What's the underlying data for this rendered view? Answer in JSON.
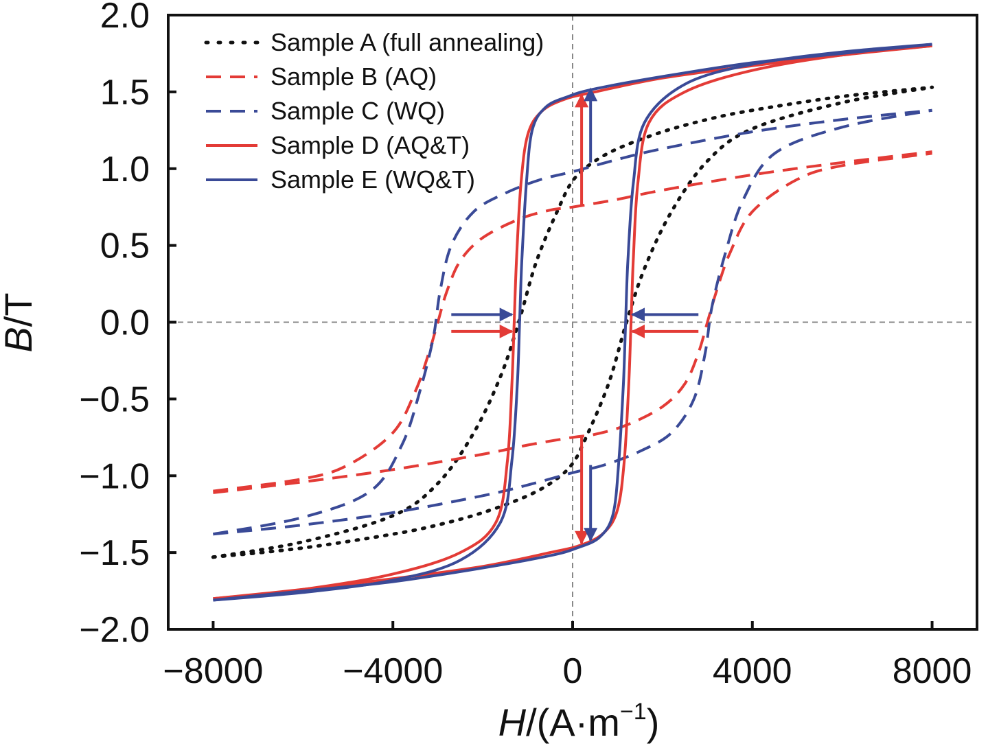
{
  "chart_data": {
    "type": "line",
    "title": "",
    "xlabel_italic": "H",
    "xlabel_unit": "/(A·m",
    "xlabel_sup": "−1",
    "xlabel_close": ")",
    "ylabel_italic": "B",
    "ylabel_unit": "/T",
    "xlim": [
      -9000,
      9000
    ],
    "ylim": [
      -2.0,
      2.0
    ],
    "x_ticks": [
      -8000,
      -4000,
      0,
      4000,
      8000
    ],
    "x_tick_labels": [
      "−8000",
      "−4000",
      "0",
      "4000",
      "8000"
    ],
    "y_ticks": [
      2.0,
      1.5,
      1.0,
      0.5,
      0.0,
      -0.5,
      -1.0,
      -1.5,
      -2.0
    ],
    "y_tick_labels": [
      "2.0",
      "1.5",
      "1.0",
      "0.5",
      "0.0",
      "−0.5",
      "−1.0",
      "−1.5",
      "−2.0"
    ],
    "grid": false,
    "zero_lines": true,
    "legend_position": "top-left",
    "series": [
      {
        "name": "Sample A (full annealing)",
        "style": "dotted",
        "color": "#111111",
        "upper": [
          [
            -8000,
            -1.53
          ],
          [
            -6000,
            -1.43
          ],
          [
            -4000,
            -1.26
          ],
          [
            -3000,
            -1.05
          ],
          [
            -2200,
            -0.72
          ],
          [
            -1600,
            -0.35
          ],
          [
            -1200,
            0.0
          ],
          [
            -800,
            0.4
          ],
          [
            -300,
            0.75
          ],
          [
            0,
            0.92
          ],
          [
            400,
            1.03
          ],
          [
            1000,
            1.13
          ],
          [
            2000,
            1.24
          ],
          [
            3000,
            1.32
          ],
          [
            4000,
            1.38
          ],
          [
            6000,
            1.47
          ],
          [
            8000,
            1.53
          ]
        ],
        "lower": [
          [
            -8000,
            -1.53
          ],
          [
            -6000,
            -1.47
          ],
          [
            -4000,
            -1.38
          ],
          [
            -3000,
            -1.32
          ],
          [
            -2000,
            -1.24
          ],
          [
            -1000,
            -1.13
          ],
          [
            -400,
            -1.03
          ],
          [
            0,
            -0.92
          ],
          [
            300,
            -0.75
          ],
          [
            800,
            -0.4
          ],
          [
            1200,
            0.0
          ],
          [
            1600,
            0.35
          ],
          [
            2200,
            0.72
          ],
          [
            3000,
            1.05
          ],
          [
            4000,
            1.26
          ],
          [
            6000,
            1.43
          ],
          [
            8000,
            1.53
          ]
        ]
      },
      {
        "name": "Sample B (AQ)",
        "style": "dashed",
        "color": "#e33b36",
        "upper": [
          [
            -8000,
            -1.1
          ],
          [
            -6000,
            -1.02
          ],
          [
            -5000,
            -0.93
          ],
          [
            -4000,
            -0.72
          ],
          [
            -3500,
            -0.45
          ],
          [
            -3200,
            -0.2
          ],
          [
            -3000,
            0.0
          ],
          [
            -2800,
            0.2
          ],
          [
            -2500,
            0.4
          ],
          [
            -2000,
            0.55
          ],
          [
            -1200,
            0.67
          ],
          [
            -500,
            0.73
          ],
          [
            0,
            0.75
          ],
          [
            1000,
            0.8
          ],
          [
            2000,
            0.86
          ],
          [
            4000,
            0.96
          ],
          [
            6000,
            1.04
          ],
          [
            8000,
            1.11
          ]
        ],
        "lower": [
          [
            -8000,
            -1.11
          ],
          [
            -6000,
            -1.04
          ],
          [
            -4000,
            -0.96
          ],
          [
            -2000,
            -0.86
          ],
          [
            -1000,
            -0.8
          ],
          [
            0,
            -0.75
          ],
          [
            500,
            -0.73
          ],
          [
            1200,
            -0.67
          ],
          [
            2000,
            -0.55
          ],
          [
            2500,
            -0.4
          ],
          [
            2800,
            -0.2
          ],
          [
            3000,
            0.0
          ],
          [
            3200,
            0.2
          ],
          [
            3500,
            0.45
          ],
          [
            4000,
            0.72
          ],
          [
            5000,
            0.93
          ],
          [
            6000,
            1.02
          ],
          [
            8000,
            1.1
          ]
        ]
      },
      {
        "name": "Sample C (WQ)",
        "style": "dashed",
        "color": "#3a4a97",
        "upper": [
          [
            -8000,
            -1.38
          ],
          [
            -6000,
            -1.27
          ],
          [
            -4500,
            -1.1
          ],
          [
            -3800,
            -0.8
          ],
          [
            -3400,
            -0.45
          ],
          [
            -3100,
            -0.1
          ],
          [
            -2950,
            0.2
          ],
          [
            -2700,
            0.5
          ],
          [
            -2200,
            0.72
          ],
          [
            -1500,
            0.84
          ],
          [
            -700,
            0.93
          ],
          [
            0,
            0.98
          ],
          [
            1000,
            1.06
          ],
          [
            2000,
            1.13
          ],
          [
            4000,
            1.24
          ],
          [
            6000,
            1.32
          ],
          [
            8000,
            1.38
          ]
        ],
        "lower": [
          [
            -8000,
            -1.38
          ],
          [
            -6000,
            -1.32
          ],
          [
            -4000,
            -1.24
          ],
          [
            -2000,
            -1.13
          ],
          [
            -1000,
            -1.06
          ],
          [
            0,
            -0.98
          ],
          [
            700,
            -0.93
          ],
          [
            1500,
            -0.84
          ],
          [
            2200,
            -0.72
          ],
          [
            2700,
            -0.5
          ],
          [
            2950,
            -0.2
          ],
          [
            3100,
            0.1
          ],
          [
            3400,
            0.45
          ],
          [
            3800,
            0.8
          ],
          [
            4500,
            1.1
          ],
          [
            6000,
            1.27
          ],
          [
            8000,
            1.38
          ]
        ]
      },
      {
        "name": "Sample D (AQ&T)",
        "style": "solid",
        "color": "#e33b36",
        "upper": [
          [
            -8000,
            -1.8
          ],
          [
            -6000,
            -1.74
          ],
          [
            -4000,
            -1.64
          ],
          [
            -2500,
            -1.5
          ],
          [
            -1700,
            -1.3
          ],
          [
            -1450,
            -0.9
          ],
          [
            -1350,
            -0.4
          ],
          [
            -1300,
            0.0
          ],
          [
            -1250,
            0.4
          ],
          [
            -1150,
            0.9
          ],
          [
            -1000,
            1.22
          ],
          [
            -700,
            1.37
          ],
          [
            -200,
            1.45
          ],
          [
            500,
            1.5
          ],
          [
            2000,
            1.59
          ],
          [
            4000,
            1.67
          ],
          [
            6000,
            1.74
          ],
          [
            8000,
            1.8
          ]
        ],
        "lower": [
          [
            -8000,
            -1.8
          ],
          [
            -6000,
            -1.74
          ],
          [
            -4000,
            -1.67
          ],
          [
            -2000,
            -1.59
          ],
          [
            -500,
            -1.5
          ],
          [
            200,
            -1.45
          ],
          [
            700,
            -1.37
          ],
          [
            1000,
            -1.22
          ],
          [
            1150,
            -0.9
          ],
          [
            1250,
            -0.4
          ],
          [
            1300,
            0.0
          ],
          [
            1350,
            0.4
          ],
          [
            1450,
            0.9
          ],
          [
            1700,
            1.3
          ],
          [
            2500,
            1.5
          ],
          [
            4000,
            1.64
          ],
          [
            6000,
            1.74
          ],
          [
            8000,
            1.8
          ]
        ]
      },
      {
        "name": "Sample E (WQ&T)",
        "style": "solid",
        "color": "#3a4a97",
        "upper": [
          [
            -8000,
            -1.81
          ],
          [
            -6000,
            -1.76
          ],
          [
            -4000,
            -1.68
          ],
          [
            -2500,
            -1.55
          ],
          [
            -1600,
            -1.3
          ],
          [
            -1350,
            -0.9
          ],
          [
            -1230,
            -0.4
          ],
          [
            -1180,
            0.0
          ],
          [
            -1130,
            0.4
          ],
          [
            -1030,
            0.9
          ],
          [
            -900,
            1.25
          ],
          [
            -600,
            1.4
          ],
          [
            -100,
            1.47
          ],
          [
            500,
            1.52
          ],
          [
            2000,
            1.6
          ],
          [
            4000,
            1.69
          ],
          [
            6000,
            1.75
          ],
          [
            8000,
            1.81
          ]
        ],
        "lower": [
          [
            -8000,
            -1.81
          ],
          [
            -6000,
            -1.75
          ],
          [
            -4000,
            -1.69
          ],
          [
            -2000,
            -1.6
          ],
          [
            -500,
            -1.52
          ],
          [
            100,
            -1.47
          ],
          [
            600,
            -1.4
          ],
          [
            900,
            -1.25
          ],
          [
            1030,
            -0.9
          ],
          [
            1130,
            -0.4
          ],
          [
            1180,
            0.0
          ],
          [
            1230,
            0.4
          ],
          [
            1350,
            0.9
          ],
          [
            1600,
            1.3
          ],
          [
            2500,
            1.55
          ],
          [
            4000,
            1.68
          ],
          [
            6000,
            1.76
          ],
          [
            8000,
            1.81
          ]
        ]
      }
    ],
    "annotations": [
      {
        "type": "arrow",
        "color": "#e33b36",
        "from": [
          200,
          0.76
        ],
        "to": [
          200,
          1.48
        ]
      },
      {
        "type": "arrow",
        "color": "#3a4a97",
        "from": [
          400,
          1.04
        ],
        "to": [
          400,
          1.52
        ]
      },
      {
        "type": "arrow",
        "color": "#3a4a97",
        "from": [
          -2700,
          0.05
        ],
        "to": [
          -1350,
          0.05
        ]
      },
      {
        "type": "arrow",
        "color": "#e33b36",
        "from": [
          -2700,
          -0.06
        ],
        "to": [
          -1350,
          -0.06
        ]
      },
      {
        "type": "arrow",
        "color": "#3a4a97",
        "from": [
          2800,
          0.05
        ],
        "to": [
          1330,
          0.05
        ]
      },
      {
        "type": "arrow",
        "color": "#e33b36",
        "from": [
          2800,
          -0.06
        ],
        "to": [
          1330,
          -0.06
        ]
      },
      {
        "type": "arrow",
        "color": "#e33b36",
        "from": [
          200,
          -0.75
        ],
        "to": [
          200,
          -1.44
        ]
      },
      {
        "type": "arrow",
        "color": "#3a4a97",
        "from": [
          400,
          -0.93
        ],
        "to": [
          400,
          -1.42
        ]
      }
    ]
  }
}
